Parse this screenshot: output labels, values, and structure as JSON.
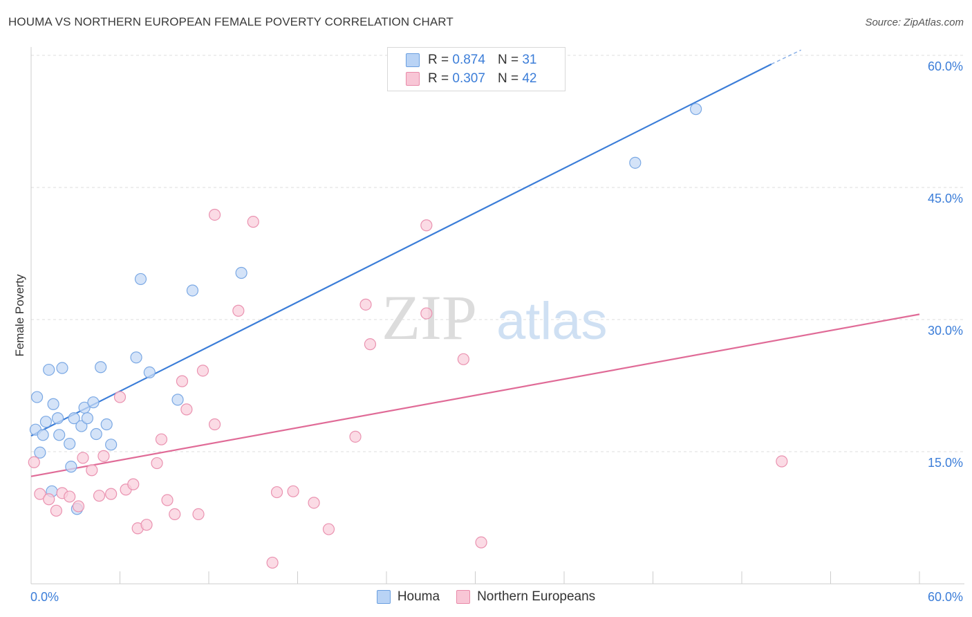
{
  "header": {
    "title": "HOUMA VS NORTHERN EUROPEAN FEMALE POVERTY CORRELATION CHART",
    "source": "Source: ZipAtlas.com"
  },
  "watermark": {
    "zip": "ZIP",
    "atlas": "atlas"
  },
  "legend": {
    "r_label": "R =",
    "n_label": "N =",
    "entries": [
      {
        "r": "0.874",
        "n": "31",
        "fill": "#b9d3f5",
        "stroke": "#6a9fe0"
      },
      {
        "r": "0.307",
        "n": "42",
        "fill": "#f8c6d6",
        "stroke": "#e98aa9"
      }
    ]
  },
  "chart_data": {
    "type": "scatter",
    "title": "HOUMA VS NORTHERN EUROPEAN FEMALE POVERTY CORRELATION CHART",
    "xlabel": "",
    "ylabel": "Female Poverty",
    "xlim": [
      0,
      60
    ],
    "ylim": [
      0,
      60
    ],
    "x_tick_labels": [
      "0.0%",
      "60.0%"
    ],
    "y_ticks": [
      {
        "value": 15,
        "label": "15.0%"
      },
      {
        "value": 30,
        "label": "30.0%"
      },
      {
        "value": 45,
        "label": "45.0%"
      },
      {
        "value": 60,
        "label": "60.0%"
      }
    ],
    "series": [
      {
        "name": "Houma",
        "color": "#3b7dd8",
        "fill": "#c5daf5",
        "stroke": "#7aa8e4",
        "r": 0.874,
        "n": 31,
        "trend": {
          "x0": 0,
          "y0": 16.8,
          "x1": 50,
          "y1": 59.0,
          "dash_to_x": 52,
          "dash_to_y": 60.6
        },
        "points": [
          [
            0.3,
            17.5
          ],
          [
            0.4,
            21.2
          ],
          [
            0.6,
            14.9
          ],
          [
            0.8,
            16.9
          ],
          [
            1.0,
            18.4
          ],
          [
            1.2,
            24.3
          ],
          [
            1.4,
            10.5
          ],
          [
            1.5,
            20.4
          ],
          [
            1.8,
            18.8
          ],
          [
            1.9,
            16.9
          ],
          [
            2.1,
            24.5
          ],
          [
            2.6,
            15.9
          ],
          [
            2.7,
            13.3
          ],
          [
            2.9,
            18.8
          ],
          [
            3.1,
            8.5
          ],
          [
            3.4,
            17.9
          ],
          [
            3.6,
            20.0
          ],
          [
            3.8,
            18.8
          ],
          [
            4.2,
            20.6
          ],
          [
            4.4,
            17.0
          ],
          [
            4.7,
            24.6
          ],
          [
            5.1,
            18.1
          ],
          [
            5.4,
            15.8
          ],
          [
            7.1,
            25.7
          ],
          [
            7.4,
            34.6
          ],
          [
            8.0,
            24.0
          ],
          [
            9.9,
            20.9
          ],
          [
            10.9,
            33.3
          ],
          [
            14.2,
            35.3
          ],
          [
            40.8,
            47.8
          ],
          [
            44.9,
            53.9
          ]
        ]
      },
      {
        "name": "Northern Europeans",
        "color": "#e06b97",
        "fill": "#f9cfdc",
        "stroke": "#ea92b0",
        "r": 0.307,
        "n": 42,
        "trend": {
          "x0": 0,
          "y0": 12.2,
          "x1": 60,
          "y1": 30.6
        },
        "points": [
          [
            0.2,
            13.8
          ],
          [
            0.6,
            10.2
          ],
          [
            1.2,
            9.6
          ],
          [
            1.7,
            8.3
          ],
          [
            2.1,
            10.3
          ],
          [
            2.6,
            9.9
          ],
          [
            3.2,
            8.8
          ],
          [
            3.5,
            14.3
          ],
          [
            4.1,
            12.9
          ],
          [
            4.6,
            10.0
          ],
          [
            4.9,
            14.5
          ],
          [
            5.4,
            10.2
          ],
          [
            6.0,
            21.2
          ],
          [
            6.4,
            10.7
          ],
          [
            6.9,
            11.3
          ],
          [
            7.2,
            6.3
          ],
          [
            7.8,
            6.7
          ],
          [
            8.5,
            13.7
          ],
          [
            8.8,
            16.4
          ],
          [
            9.2,
            9.5
          ],
          [
            9.7,
            7.9
          ],
          [
            10.2,
            23.0
          ],
          [
            10.5,
            19.8
          ],
          [
            11.3,
            7.9
          ],
          [
            11.6,
            24.2
          ],
          [
            12.4,
            18.1
          ],
          [
            12.4,
            41.9
          ],
          [
            14.0,
            31.0
          ],
          [
            15.0,
            41.1
          ],
          [
            16.3,
            2.4
          ],
          [
            16.6,
            10.4
          ],
          [
            17.7,
            10.5
          ],
          [
            19.1,
            9.2
          ],
          [
            20.1,
            6.2
          ],
          [
            21.9,
            16.7
          ],
          [
            22.6,
            31.7
          ],
          [
            22.9,
            27.2
          ],
          [
            26.7,
            40.7
          ],
          [
            26.7,
            30.7
          ],
          [
            29.2,
            25.5
          ],
          [
            30.4,
            4.7
          ],
          [
            50.7,
            13.9
          ]
        ]
      }
    ]
  }
}
